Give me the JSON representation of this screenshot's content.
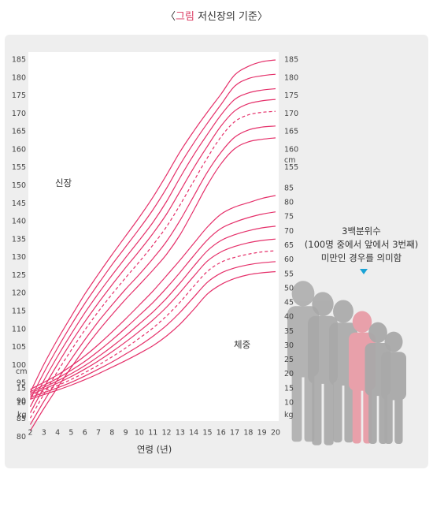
{
  "title": {
    "open": "〈",
    "highlight": "그림",
    "rest": " 저신장의 기준〉"
  },
  "labels": {
    "height": "신장",
    "weight": "체중",
    "xlabel": "연령 (년)",
    "cm": "cm",
    "kg": "kg"
  },
  "note": {
    "line1": "3백분위수",
    "line2": "(100명 중에서 앞에서 3번째)",
    "line3": "미만인 경우를 의미함"
  },
  "colors": {
    "curve": "#e5306a",
    "panel": "#eeeeee",
    "plot": "#ffffff",
    "arrow": "#1aa3d6",
    "silhouette": "#a9a9a9",
    "highlight_figure": "#e8a0aa"
  },
  "icons": [
    "children-silhouettes",
    "down-triangle-icon"
  ],
  "chart_data": {
    "type": "line",
    "xlabel": "연령 (년)",
    "x": [
      2,
      3,
      4,
      5,
      6,
      7,
      8,
      9,
      10,
      11,
      12,
      13,
      14,
      15,
      16,
      17,
      18,
      19,
      20
    ],
    "height_chart": {
      "unit": "cm",
      "ylim": [
        80,
        185
      ],
      "left_ticks": [
        80,
        85,
        90,
        95,
        100,
        105,
        110,
        115,
        120,
        125,
        130,
        135,
        140,
        145,
        150,
        155,
        160,
        165,
        170,
        175,
        180,
        185
      ],
      "right_ticks": [
        155,
        160,
        165,
        170,
        175,
        180,
        185
      ],
      "series": [
        {
          "style": "solid",
          "values": [
            92.5,
            100.3,
            107.2,
            113.6,
            119.8,
            125.4,
            130.8,
            136.0,
            141.2,
            146.8,
            153.0,
            159.5,
            165.2,
            170.5,
            175.5,
            180.8,
            183.2,
            184.5,
            185.0
          ]
        },
        {
          "style": "solid",
          "values": [
            90.5,
            98.0,
            104.8,
            111.2,
            117.2,
            122.7,
            128.0,
            133.0,
            138.0,
            143.3,
            149.3,
            155.9,
            161.9,
            167.4,
            172.6,
            177.7,
            179.8,
            180.6,
            181.0
          ]
        },
        {
          "style": "solid",
          "values": [
            88.5,
            95.8,
            102.5,
            108.7,
            114.6,
            120.0,
            125.1,
            130.0,
            134.8,
            139.8,
            145.6,
            152.3,
            158.6,
            164.3,
            169.7,
            174.0,
            175.8,
            176.6,
            177.0
          ]
        },
        {
          "style": "solid",
          "values": [
            86.8,
            93.8,
            100.3,
            106.4,
            112.1,
            117.4,
            122.4,
            127.2,
            131.8,
            136.7,
            142.1,
            148.5,
            155.0,
            161.0,
            166.6,
            170.8,
            172.8,
            173.6,
            174.0
          ]
        },
        {
          "style": "dashed",
          "values": [
            85.3,
            92.0,
            98.3,
            104.2,
            109.8,
            115.0,
            119.8,
            124.4,
            128.8,
            133.5,
            138.6,
            144.7,
            151.3,
            157.8,
            163.6,
            167.8,
            169.7,
            170.4,
            170.7
          ]
        },
        {
          "style": "solid",
          "values": [
            83.5,
            90.0,
            96.0,
            101.7,
            107.1,
            112.2,
            116.8,
            121.2,
            125.3,
            129.7,
            134.5,
            140.4,
            147.1,
            153.8,
            159.3,
            163.5,
            165.5,
            166.3,
            166.6
          ]
        },
        {
          "style": "solid",
          "values": [
            81.8,
            88.0,
            93.8,
            99.4,
            104.7,
            109.6,
            114.1,
            118.4,
            122.4,
            126.5,
            130.9,
            136.4,
            143.2,
            150.2,
            156.1,
            160.3,
            162.2,
            162.9,
            163.3
          ]
        }
      ]
    },
    "weight_chart": {
      "unit": "kg",
      "ylim": [
        10,
        85
      ],
      "left_ticks": [
        10,
        15
      ],
      "right_ticks": [
        10,
        15,
        20,
        25,
        30,
        35,
        40,
        45,
        50,
        55,
        60,
        65,
        70,
        75,
        80,
        85
      ],
      "series": [
        {
          "style": "solid",
          "values": [
            14.7,
            17.2,
            19.8,
            22.9,
            26.4,
            30.4,
            34.8,
            39.4,
            44.2,
            49.1,
            54.5,
            60.0,
            65.8,
            71.5,
            76.0,
            78.5,
            80.0,
            81.5,
            82.5
          ]
        },
        {
          "style": "solid",
          "values": [
            13.9,
            16.2,
            18.6,
            21.4,
            24.5,
            28.1,
            32.0,
            36.2,
            40.6,
            45.1,
            50.2,
            55.7,
            61.5,
            67.0,
            71.0,
            73.2,
            74.8,
            76.0,
            76.8
          ]
        },
        {
          "style": "solid",
          "values": [
            13.4,
            15.5,
            17.7,
            20.2,
            23.0,
            26.2,
            29.7,
            33.5,
            37.6,
            41.8,
            46.6,
            52.0,
            57.8,
            63.2,
            66.8,
            68.8,
            70.2,
            71.2,
            71.8
          ]
        },
        {
          "style": "solid",
          "values": [
            12.9,
            14.8,
            16.9,
            19.2,
            21.8,
            24.7,
            27.9,
            31.3,
            35.0,
            39.0,
            43.5,
            48.7,
            54.3,
            59.6,
            62.8,
            64.7,
            66.0,
            66.8,
            67.3
          ]
        },
        {
          "style": "dashed",
          "values": [
            12.4,
            14.2,
            16.1,
            18.2,
            20.6,
            23.2,
            26.1,
            29.2,
            32.6,
            36.2,
            40.4,
            45.3,
            50.8,
            56.0,
            59.2,
            60.9,
            62.0,
            62.8,
            63.2
          ]
        },
        {
          "style": "solid",
          "values": [
            11.9,
            13.6,
            15.3,
            17.2,
            19.4,
            21.8,
            24.3,
            27.1,
            30.0,
            33.3,
            37.1,
            41.7,
            47.0,
            52.2,
            55.4,
            57.2,
            58.3,
            59.0,
            59.4
          ]
        },
        {
          "style": "solid",
          "values": [
            11.3,
            12.9,
            14.5,
            16.2,
            18.1,
            20.2,
            22.5,
            24.8,
            27.3,
            30.0,
            33.4,
            37.6,
            42.7,
            48.1,
            51.4,
            53.5,
            54.8,
            55.5,
            55.9
          ]
        }
      ]
    }
  }
}
